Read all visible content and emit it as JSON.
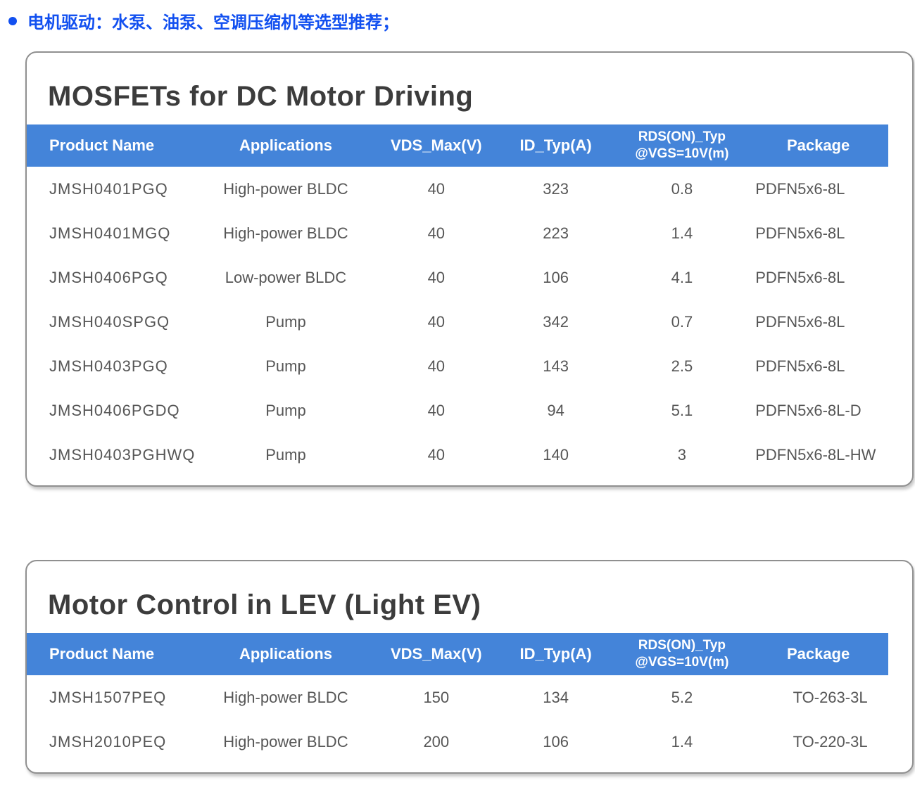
{
  "bullet": {
    "text": "电机驱动：水泵、油泵、空调压缩机等选型推荐；"
  },
  "colors": {
    "accent_blue": "#4484d9",
    "bullet_blue": "#1250f0",
    "header_text": "#ffffff",
    "body_text": "#565656",
    "title_text": "#3c3c3c",
    "card_border": "#909090"
  },
  "tables": [
    {
      "title": "MOSFETs for DC Motor Driving",
      "columns": [
        "Product Name",
        "Applications",
        "VDS_Max(V)",
        "ID_Typ(A)",
        {
          "line1": "RDS(ON)_Typ",
          "line2": "@VGS=10V(m)"
        },
        "Package"
      ],
      "rows": [
        [
          "JMSH0401PGQ",
          "High-power BLDC",
          "40",
          "323",
          "0.8",
          "PDFN5x6-8L"
        ],
        [
          "JMSH0401MGQ",
          "High-power BLDC",
          "40",
          "223",
          "1.4",
          "PDFN5x6-8L"
        ],
        [
          "JMSH0406PGQ",
          "Low-power BLDC",
          "40",
          "106",
          "4.1",
          "PDFN5x6-8L"
        ],
        [
          "JMSH040SPGQ",
          "Pump",
          "40",
          "342",
          "0.7",
          "PDFN5x6-8L"
        ],
        [
          "JMSH0403PGQ",
          "Pump",
          "40",
          "143",
          "2.5",
          "PDFN5x6-8L"
        ],
        [
          "JMSH0406PGDQ",
          "Pump",
          "40",
          "94",
          "5.1",
          "PDFN5x6-8L-D"
        ],
        [
          "JMSH0403PGHWQ",
          "Pump",
          "40",
          "140",
          "3",
          "PDFN5x6-8L-HW"
        ]
      ]
    },
    {
      "title": "Motor Control in LEV (Light EV)",
      "columns": [
        "Product Name",
        "Applications",
        "VDS_Max(V)",
        "ID_Typ(A)",
        {
          "line1": "RDS(ON)_Typ",
          "line2": "@VGS=10V(m)"
        },
        "Package"
      ],
      "rows": [
        [
          "JMSH1507PEQ",
          "High-power BLDC",
          "150",
          "134",
          "5.2",
          "TO-263-3L"
        ],
        [
          "JMSH2010PEQ",
          "High-power BLDC",
          "200",
          "106",
          "1.4",
          "TO-220-3L"
        ]
      ]
    }
  ]
}
